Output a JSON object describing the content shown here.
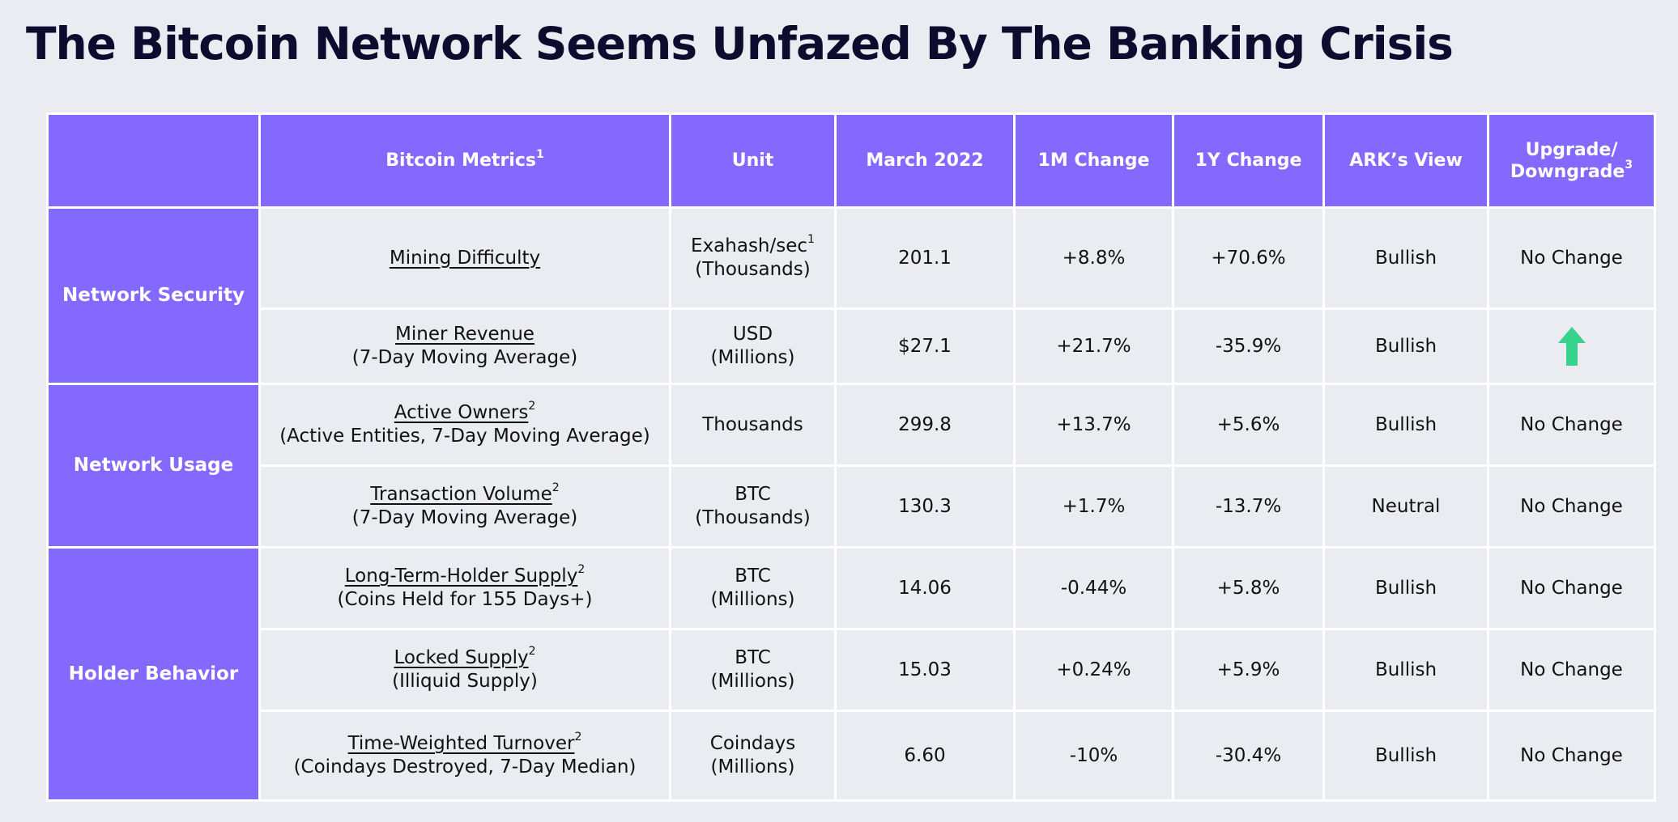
{
  "title": "The Bitcoin Network Seems Unfazed By The Banking Crisis",
  "colors": {
    "header_bg": "#8469ff",
    "bullish": "#36d38c",
    "neutral": "#8c8c8c",
    "arrow": "#36d38c"
  },
  "headers": {
    "metrics": "Bitcoin Metrics",
    "metrics_sup": "1",
    "unit": "Unit",
    "march": "March 2022",
    "m1": "1M Change",
    "y1": "1Y Change",
    "view": "ARK’s View",
    "upgrade_line1": "Upgrade/",
    "upgrade_line2": "Downgrade",
    "upgrade_sup": "3"
  },
  "groups": {
    "security": "Network Security",
    "usage": "Network Usage",
    "holder": "Holder Behavior"
  },
  "rows": [
    {
      "name": "Mining Difficulty",
      "name_sup": "",
      "sub": "",
      "unit1": "Exahash/sec",
      "unit_sup": "1",
      "unit2": "(Thousands)",
      "value": "201.1",
      "m1": "+8.8%",
      "y1": "+70.6%",
      "view": "Bullish",
      "change": "No Change"
    },
    {
      "name": "Miner Revenue",
      "name_sup": "",
      "sub": "(7-Day Moving Average)",
      "unit1": "USD",
      "unit_sup": "",
      "unit2": "(Millions)",
      "value": "$27.1",
      "m1": "+21.7%",
      "y1": "-35.9%",
      "view": "Bullish",
      "change": "up-arrow-icon"
    },
    {
      "name": "Active Owners",
      "name_sup": "2",
      "sub": "(Active Entities, 7-Day Moving Average)",
      "unit1": "Thousands",
      "unit_sup": "",
      "unit2": "",
      "value": "299.8",
      "m1": "+13.7%",
      "y1": "+5.6%",
      "view": "Bullish",
      "change": "No Change"
    },
    {
      "name": "Transaction Volume",
      "name_sup": "2",
      "sub": "(7-Day Moving Average)",
      "unit1": "BTC",
      "unit_sup": "",
      "unit2": "(Thousands)",
      "value": "130.3",
      "m1": "+1.7%",
      "y1": "-13.7%",
      "view": "Neutral",
      "change": "No Change"
    },
    {
      "name": "Long-Term-Holder Supply",
      "name_sup": "2",
      "sub": "(Coins Held for 155 Days+)",
      "unit1": "BTC",
      "unit_sup": "",
      "unit2": "(Millions)",
      "value": "14.06",
      "m1": "-0.44%",
      "y1": "+5.8%",
      "view": "Bullish",
      "change": "No Change"
    },
    {
      "name": "Locked Supply",
      "name_sup": "2",
      "sub": "(Illiquid Supply)",
      "unit1": "BTC",
      "unit_sup": "",
      "unit2": "(Millions)",
      "value": "15.03",
      "m1": "+0.24%",
      "y1": "+5.9%",
      "view": "Bullish",
      "change": "No Change"
    },
    {
      "name": "Time-Weighted Turnover",
      "name_sup": "2",
      "sub": "(Coindays Destroyed, 7-Day Median)",
      "unit1": "Coindays",
      "unit_sup": "",
      "unit2": "(Millions)",
      "value": "6.60",
      "m1": "-10%",
      "y1": "-30.4%",
      "view": "Bullish",
      "change": "No Change"
    }
  ]
}
